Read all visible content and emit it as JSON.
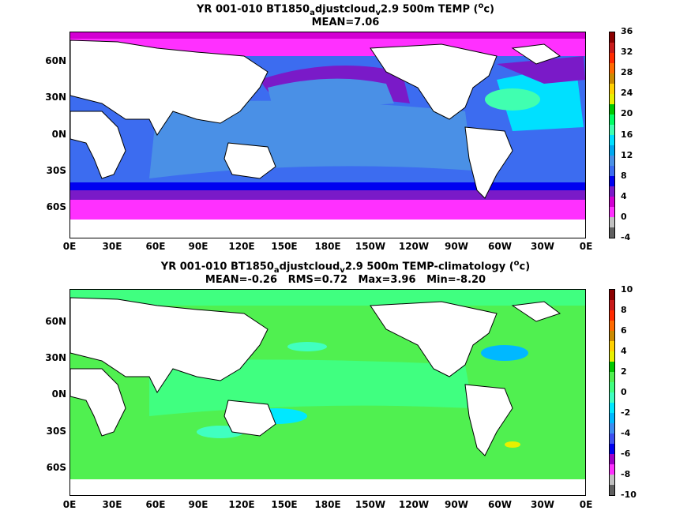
{
  "panel1": {
    "title_prefix": "YR 001-010 BT1850",
    "title_sub_a": "a",
    "title_mid": "djustcloud",
    "title_sub_v": "v",
    "title_suffix": "2.9 500m TEMP (",
    "title_sup": "o",
    "title_end": "c)",
    "stats": "MEAN=7.06",
    "colorbar_labels": [
      "36",
      "32",
      "28",
      "24",
      "20",
      "16",
      "12",
      "8",
      "4",
      "0",
      "-4"
    ]
  },
  "panel2": {
    "title_prefix": "YR 001-010 BT1850",
    "title_sub_a": "a",
    "title_mid": "djustcloud",
    "title_sub_v": "v",
    "title_suffix": "2.9 500m TEMP-climatology (",
    "title_sup": "o",
    "title_end": "c)",
    "stats": "MEAN=-0.26   RMS=0.72   Max=3.96   Min=-8.20",
    "colorbar_labels": [
      "10",
      "8",
      "6",
      "4",
      "2",
      "0",
      "-2",
      "-4",
      "-6",
      "-8",
      "-10"
    ]
  },
  "axes": {
    "lat_labels": [
      "60N",
      "30N",
      "0N",
      "30S",
      "60S"
    ],
    "lon_labels": [
      "0E",
      "30E",
      "60E",
      "90E",
      "120E",
      "150E",
      "180E",
      "150W",
      "120W",
      "90W",
      "60W",
      "30W",
      "0E"
    ]
  },
  "colors": {
    "land": "#ffffff",
    "coastline": "#000000",
    "cbar1": [
      "#8b0000",
      "#c81a1a",
      "#ff2a00",
      "#ff6a00",
      "#cc8a00",
      "#ffd000",
      "#e8f000",
      "#00c800",
      "#00ff64",
      "#40ffb0",
      "#00e0ff",
      "#00a8f0",
      "#4a90e6",
      "#3c6cf0",
      "#0000f0",
      "#7a1ac8",
      "#d200d2",
      "#ff30ff",
      "#c0c0c0",
      "#606060"
    ],
    "cbar2": [
      "#8b0000",
      "#c81a1a",
      "#ff2a00",
      "#ff6a00",
      "#cc8a00",
      "#ffd000",
      "#e8f000",
      "#00c800",
      "#50f050",
      "#40ff80",
      "#40ffc0",
      "#00e8ff",
      "#00b8ff",
      "#3c8cf0",
      "#3c50f0",
      "#0000f0",
      "#a000c8",
      "#ff30ff",
      "#c0c0c0",
      "#606060"
    ]
  }
}
